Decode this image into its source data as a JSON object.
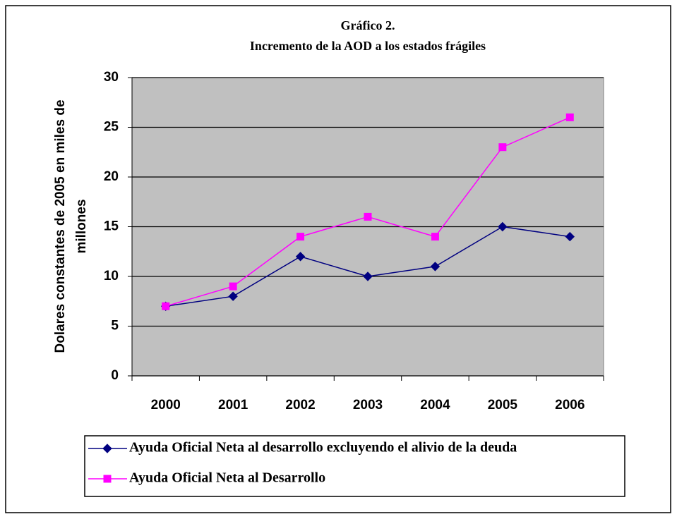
{
  "chart_data": {
    "type": "line",
    "title": "Gráfico 2.",
    "subtitle": "Incremento de la AOD a los estados frágiles",
    "ylabel": [
      "Dolares constantes de 2005 en miles de",
      "millones"
    ],
    "categories": [
      "2000",
      "2001",
      "2002",
      "2003",
      "2004",
      "2005",
      "2006"
    ],
    "series": [
      {
        "name": "Ayuda Oficial Neta al desarrollo excluyendo el alivio de la deuda",
        "color": "#000080",
        "marker": "diamond",
        "values": [
          7,
          8,
          12,
          10,
          11,
          15,
          14
        ]
      },
      {
        "name": "Ayuda Oficial Neta al Desarrollo",
        "color": "#ff00ff",
        "marker": "square",
        "values": [
          7,
          9,
          14,
          16,
          14,
          23,
          26
        ]
      }
    ],
    "ylim": [
      0,
      30
    ],
    "yticks": [
      0,
      5,
      10,
      15,
      20,
      25,
      30
    ],
    "grid": true,
    "legend": "bottom"
  }
}
